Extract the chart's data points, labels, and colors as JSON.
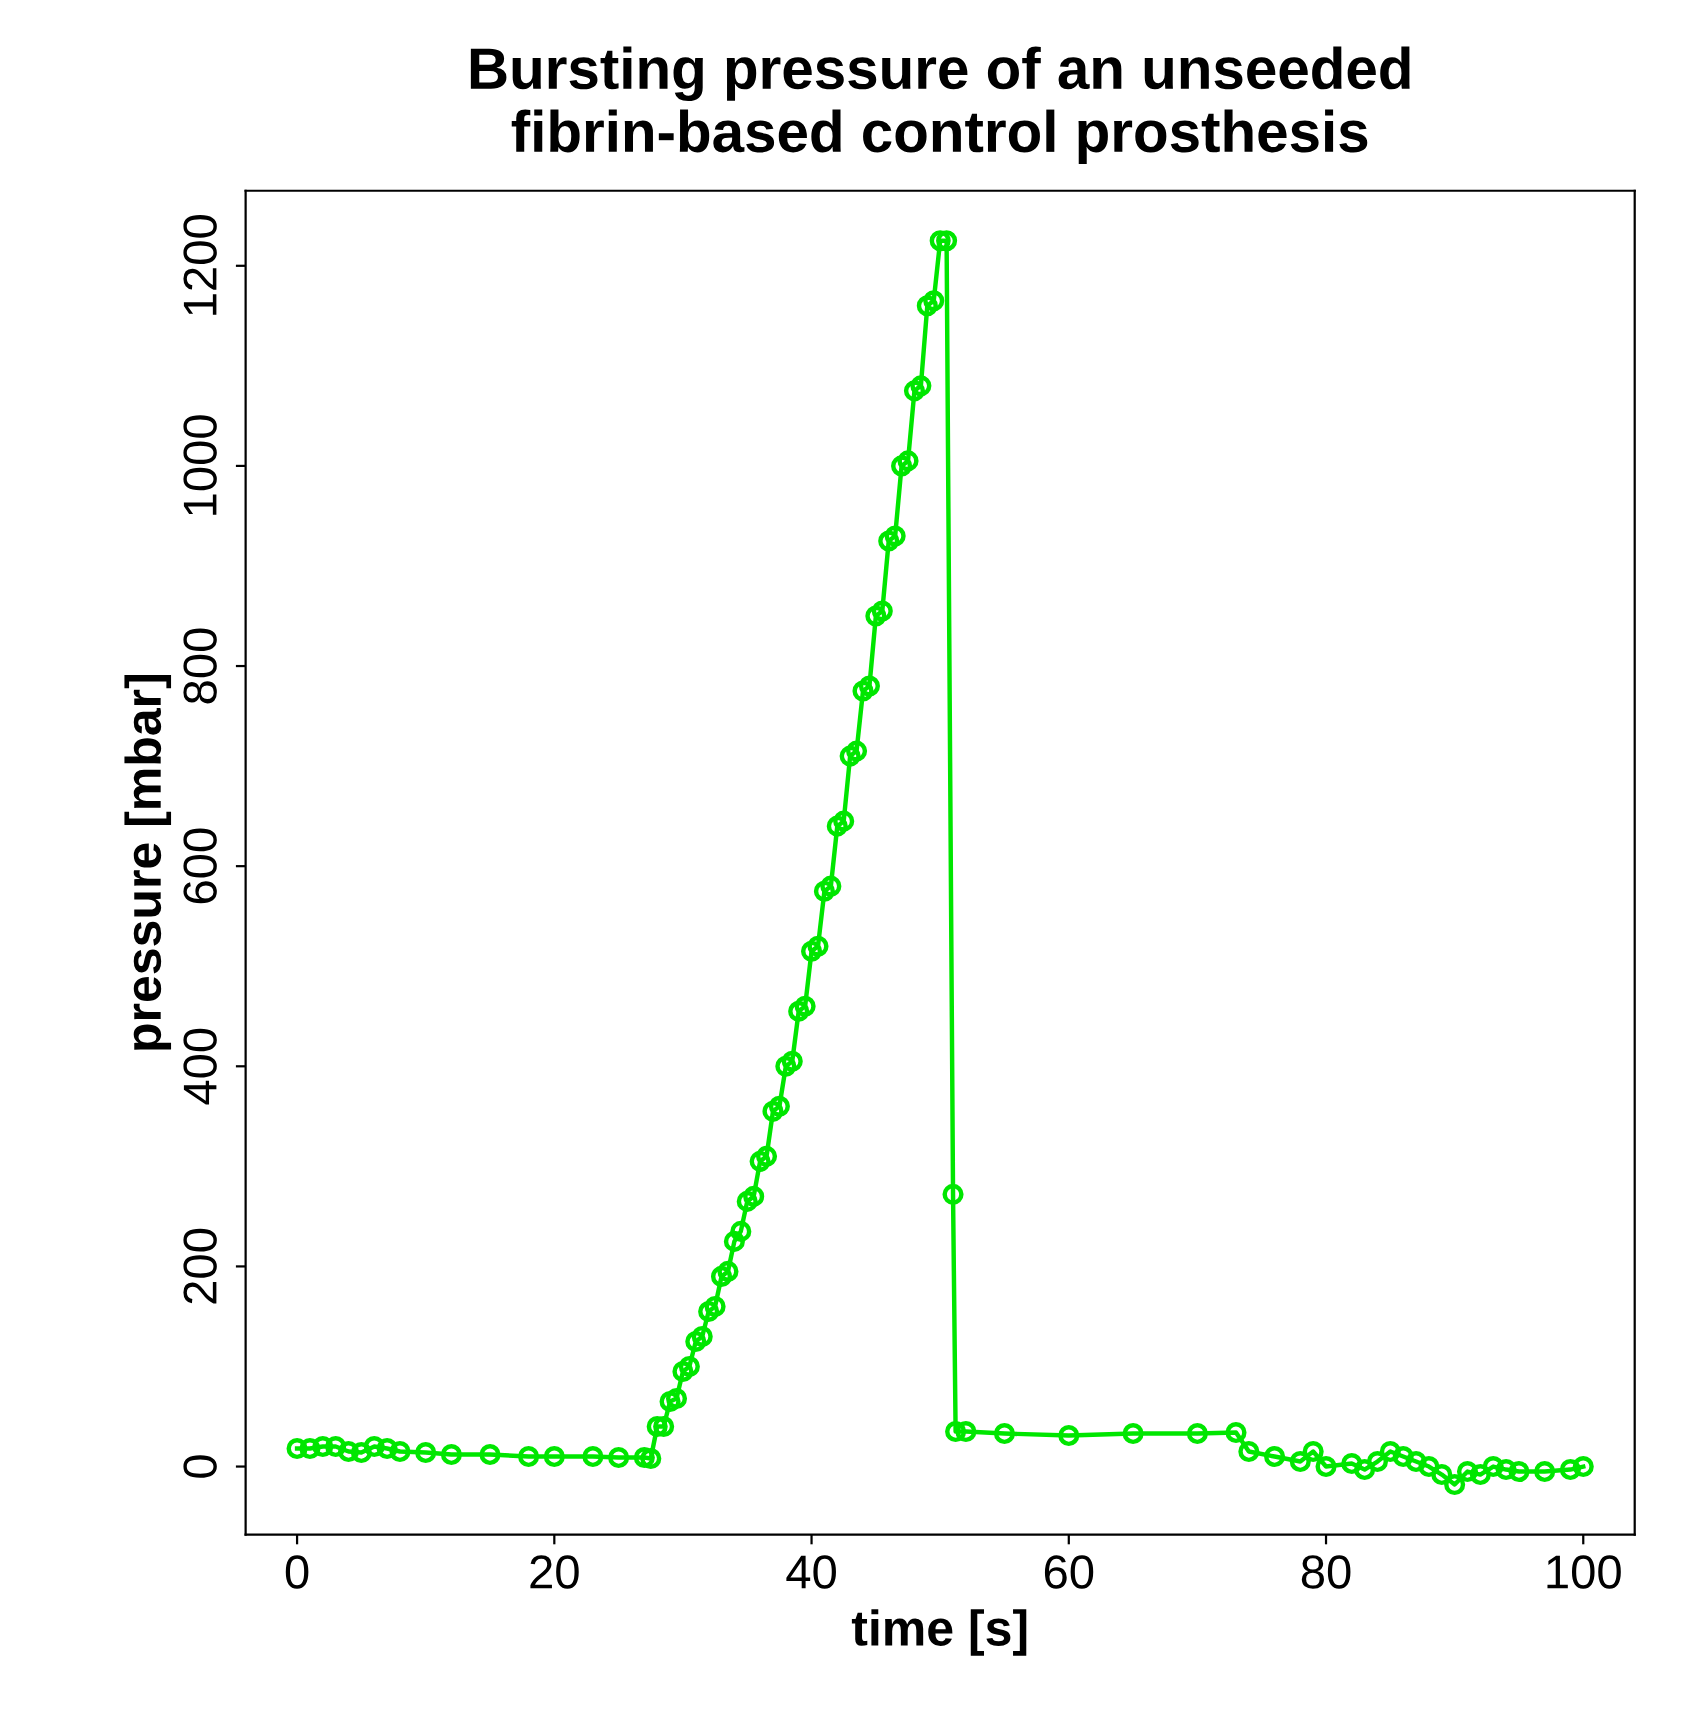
{
  "chart_data": {
    "type": "line",
    "title": "Bursting pressure of an unseeded\nfibrin-based control prosthesis",
    "xlabel": "time [s]",
    "ylabel": "pressure [mbar]",
    "x": [
      0,
      1,
      2,
      3,
      4,
      5,
      6,
      7,
      8,
      10,
      12,
      15,
      18,
      20,
      23,
      25,
      27,
      27.5,
      28,
      28.5,
      29,
      29.5,
      30,
      30.5,
      31,
      31.5,
      32,
      32.5,
      33,
      33.5,
      34,
      34.5,
      35,
      35.5,
      36,
      36.5,
      37,
      37.5,
      38,
      38.5,
      39,
      39.5,
      40,
      40.5,
      41,
      41.5,
      42,
      42.5,
      43,
      43.5,
      44,
      44.5,
      45,
      45.5,
      46,
      46.5,
      47,
      47.5,
      48,
      48.5,
      49,
      49.5,
      50,
      50.5,
      51,
      51.2,
      52,
      55,
      60,
      65,
      70,
      73,
      74,
      76,
      78,
      79,
      80,
      82,
      83,
      84,
      85,
      86,
      87,
      88,
      89,
      90,
      91,
      92,
      93,
      94,
      95,
      97,
      99,
      100
    ],
    "series": [
      {
        "color": "#00e600",
        "values": [
          18,
          18,
          20,
          20,
          15,
          14,
          20,
          18,
          15,
          14,
          12,
          12,
          10,
          10,
          10,
          9,
          9,
          8,
          40,
          40,
          65,
          68,
          95,
          100,
          125,
          130,
          155,
          160,
          190,
          195,
          225,
          235,
          265,
          270,
          305,
          310,
          355,
          360,
          400,
          405,
          455,
          460,
          515,
          520,
          575,
          580,
          640,
          645,
          710,
          715,
          775,
          780,
          850,
          855,
          925,
          930,
          1000,
          1005,
          1075,
          1080,
          1160,
          1165,
          1225,
          1225,
          272,
          35,
          35,
          33,
          31,
          33,
          33,
          34,
          15,
          10,
          5,
          15,
          0,
          3,
          -3,
          5,
          15,
          10,
          5,
          0,
          -8,
          -18,
          -5,
          -8,
          0,
          -3,
          -5,
          -5,
          -3,
          0
        ]
      }
    ],
    "xlim": [
      -4,
      104
    ],
    "ylim": [
      -68,
      1275
    ],
    "xticks": [
      0,
      20,
      40,
      60,
      80,
      100
    ],
    "yticks": [
      0,
      200,
      400,
      600,
      800,
      1000,
      1200
    ],
    "marker": "circle",
    "line_style": "solid",
    "grid": false,
    "legend": false
  }
}
